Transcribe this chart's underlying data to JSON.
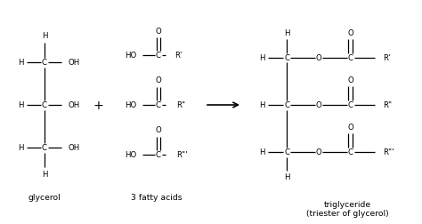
{
  "bg_color": "#ffffff",
  "text_color": "#000000",
  "figsize": [
    4.74,
    2.53
  ],
  "dpi": 100,
  "glycerol_label": "glycerol",
  "fatty_acids_label": "3 fatty acids",
  "triglyceride_label": "triglyceride\n(triester of glycerol)"
}
